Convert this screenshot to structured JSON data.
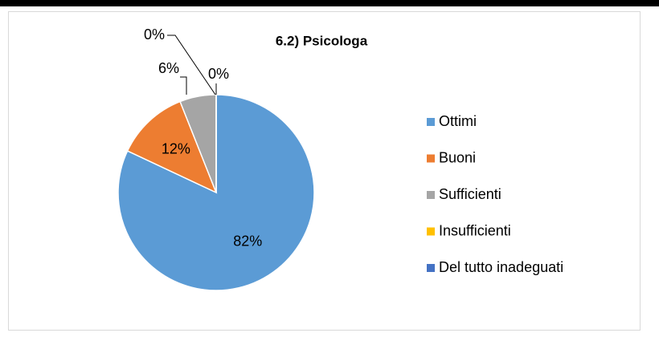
{
  "chart_data": {
    "type": "pie",
    "title": "6.2) Psicologa",
    "categories": [
      "Ottimi",
      "Buoni",
      "Sufficienti",
      "Insufficienti",
      "Del tutto inadeguati"
    ],
    "values": [
      82,
      12,
      6,
      0,
      0
    ],
    "value_labels": [
      "82%",
      "12%",
      "6%",
      "0%",
      "0%"
    ],
    "colors": [
      "#5b9bd5",
      "#ed7d31",
      "#a5a5a5",
      "#ffc000",
      "#4472c4"
    ],
    "legend": "right"
  }
}
